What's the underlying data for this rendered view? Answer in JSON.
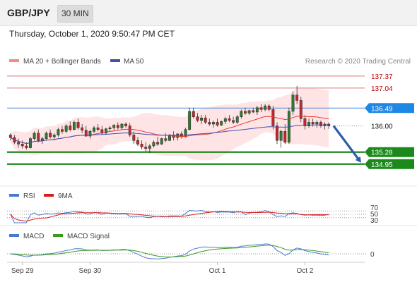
{
  "header": {
    "symbol": "GBP/JPY",
    "timeframe": "30 MIN"
  },
  "datetime": "Thursday, October 1, 2020 9:50:47 PM CET",
  "legend": {
    "main": [
      "MA 20 + Bollinger Bands",
      "MA 50"
    ],
    "rsi": [
      "RSI",
      "9MA"
    ],
    "macd": [
      "MACD",
      "MACD Signal"
    ]
  },
  "copyright": "Research © 2020 Trading Central",
  "colors": {
    "up": "#2e7d32",
    "down": "#c62828",
    "ma20": "#e53935",
    "ma50": "#3f51b5",
    "band": "#ffcdd2",
    "blue_tag": "#1e88e5",
    "green": "#1b8a1b",
    "arrow": "#2a5da8",
    "rsi_line": "#4a78d0",
    "macd_line": "#4a78d0",
    "macd_signal": "#3a9a1a"
  },
  "chart_data": {
    "type": "candlestick",
    "x_ticks": [
      "Sep 29",
      "Sep 30",
      "Oct 1",
      "Oct 2"
    ],
    "ylim": [
      134.5,
      137.6
    ],
    "levels": [
      {
        "label": "137.37",
        "value": 137.37,
        "kind": "resistance",
        "style": "red-thin"
      },
      {
        "label": "137.04",
        "value": 137.04,
        "kind": "resistance",
        "style": "red-thin"
      },
      {
        "label": "136.49",
        "value": 136.49,
        "kind": "pivot",
        "style": "blue"
      },
      {
        "label": "136.00",
        "value": 136.0,
        "kind": "last",
        "style": "dotted"
      },
      {
        "label": "135.28",
        "value": 135.28,
        "kind": "support",
        "style": "green-thick"
      },
      {
        "label": "134.95",
        "value": 134.95,
        "kind": "support",
        "style": "green-thick"
      }
    ],
    "forecast": {
      "from": 136.0,
      "to": 134.95,
      "direction": "down"
    },
    "series": [
      {
        "name": "GBP/JPY",
        "ohlc": [
          [
            135.75,
            135.8,
            135.6,
            135.68
          ],
          [
            135.68,
            135.75,
            135.5,
            135.55
          ],
          [
            135.55,
            135.65,
            135.4,
            135.5
          ],
          [
            135.5,
            135.6,
            135.38,
            135.45
          ],
          [
            135.45,
            135.55,
            135.35,
            135.4
          ],
          [
            135.4,
            135.7,
            135.38,
            135.65
          ],
          [
            135.65,
            135.85,
            135.6,
            135.8
          ],
          [
            135.8,
            135.9,
            135.55,
            135.6
          ],
          [
            135.6,
            135.7,
            135.5,
            135.65
          ],
          [
            135.65,
            135.85,
            135.62,
            135.8
          ],
          [
            135.8,
            135.9,
            135.65,
            135.7
          ],
          [
            135.7,
            135.8,
            135.6,
            135.75
          ],
          [
            135.75,
            135.95,
            135.7,
            135.9
          ],
          [
            135.9,
            136.0,
            135.78,
            135.85
          ],
          [
            135.85,
            136.05,
            135.8,
            136.0
          ],
          [
            136.0,
            136.12,
            135.85,
            135.9
          ],
          [
            135.9,
            136.15,
            135.88,
            136.1
          ],
          [
            136.1,
            136.2,
            135.9,
            135.95
          ],
          [
            135.95,
            136.05,
            135.8,
            135.88
          ],
          [
            135.88,
            136.0,
            135.7,
            135.72
          ],
          [
            135.72,
            135.9,
            135.65,
            135.85
          ],
          [
            135.85,
            136.0,
            135.8,
            135.95
          ],
          [
            135.95,
            136.05,
            135.85,
            135.9
          ],
          [
            135.9,
            136.0,
            135.75,
            135.8
          ],
          [
            135.8,
            135.95,
            135.78,
            135.92
          ],
          [
            135.92,
            136.0,
            135.85,
            135.95
          ],
          [
            135.95,
            136.05,
            135.88,
            136.02
          ],
          [
            136.02,
            136.1,
            135.9,
            135.95
          ],
          [
            135.95,
            136.08,
            135.9,
            136.05
          ],
          [
            136.05,
            136.1,
            135.95,
            136.0
          ],
          [
            136.0,
            136.08,
            135.7,
            135.75
          ],
          [
            135.75,
            135.85,
            135.5,
            135.6
          ],
          [
            135.6,
            135.7,
            135.45,
            135.5
          ],
          [
            135.5,
            135.6,
            135.35,
            135.42
          ],
          [
            135.42,
            135.55,
            135.3,
            135.38
          ],
          [
            135.38,
            135.5,
            135.25,
            135.45
          ],
          [
            135.45,
            135.6,
            135.4,
            135.55
          ],
          [
            135.55,
            135.7,
            135.45,
            135.5
          ],
          [
            135.5,
            135.68,
            135.48,
            135.65
          ],
          [
            135.65,
            135.8,
            135.55,
            135.6
          ],
          [
            135.6,
            135.78,
            135.58,
            135.75
          ],
          [
            135.75,
            135.85,
            135.6,
            135.68
          ],
          [
            135.68,
            135.8,
            135.6,
            135.78
          ],
          [
            135.78,
            135.85,
            135.65,
            135.7
          ],
          [
            135.7,
            135.95,
            135.68,
            135.9
          ],
          [
            135.9,
            136.5,
            135.88,
            136.4
          ],
          [
            136.4,
            136.5,
            136.2,
            136.25
          ],
          [
            136.25,
            136.35,
            136.1,
            136.15
          ],
          [
            136.15,
            136.3,
            136.05,
            136.22
          ],
          [
            136.22,
            136.3,
            136.05,
            136.1
          ],
          [
            136.1,
            136.2,
            136.0,
            136.05
          ],
          [
            136.05,
            136.15,
            135.95,
            136.1
          ],
          [
            136.1,
            136.2,
            135.98,
            136.02
          ],
          [
            136.02,
            136.15,
            136.0,
            136.12
          ],
          [
            136.12,
            136.25,
            136.05,
            136.2
          ],
          [
            136.2,
            136.3,
            136.1,
            136.15
          ],
          [
            136.15,
            136.25,
            136.05,
            136.1
          ],
          [
            136.1,
            136.3,
            136.05,
            136.25
          ],
          [
            136.25,
            136.45,
            136.2,
            136.4
          ],
          [
            136.4,
            136.5,
            136.3,
            136.35
          ],
          [
            136.35,
            136.45,
            136.3,
            136.42
          ],
          [
            136.42,
            136.5,
            136.35,
            136.38
          ],
          [
            136.38,
            136.55,
            136.3,
            136.5
          ],
          [
            136.5,
            136.6,
            136.38,
            136.45
          ],
          [
            136.45,
            136.6,
            136.4,
            136.55
          ],
          [
            136.55,
            136.6,
            136.4,
            136.45
          ],
          [
            136.45,
            136.55,
            135.9,
            136.0
          ],
          [
            136.0,
            136.1,
            135.5,
            135.6
          ],
          [
            135.6,
            135.9,
            135.4,
            135.85
          ],
          [
            135.85,
            136.05,
            135.5,
            135.55
          ],
          [
            135.55,
            136.5,
            135.5,
            136.4
          ],
          [
            136.4,
            136.95,
            136.3,
            136.85
          ],
          [
            136.85,
            137.1,
            136.6,
            136.7
          ],
          [
            136.7,
            136.8,
            136.1,
            136.2
          ],
          [
            136.2,
            136.3,
            135.9,
            136.0
          ],
          [
            136.0,
            136.2,
            135.95,
            136.1
          ],
          [
            136.1,
            136.2,
            135.98,
            136.05
          ],
          [
            136.05,
            136.15,
            135.95,
            136.1
          ],
          [
            136.1,
            136.15,
            135.95,
            136.0
          ],
          [
            136.0,
            136.1,
            135.9,
            136.05
          ],
          [
            136.05,
            136.1,
            135.92,
            136.0
          ]
        ]
      },
      {
        "name": "MA 20 + Bollinger Bands",
        "values": []
      },
      {
        "name": "MA 50",
        "values": []
      }
    ]
  },
  "rsi": {
    "levels": [
      "70",
      "50",
      "30"
    ]
  },
  "macd": {
    "levels": [
      "0"
    ]
  }
}
